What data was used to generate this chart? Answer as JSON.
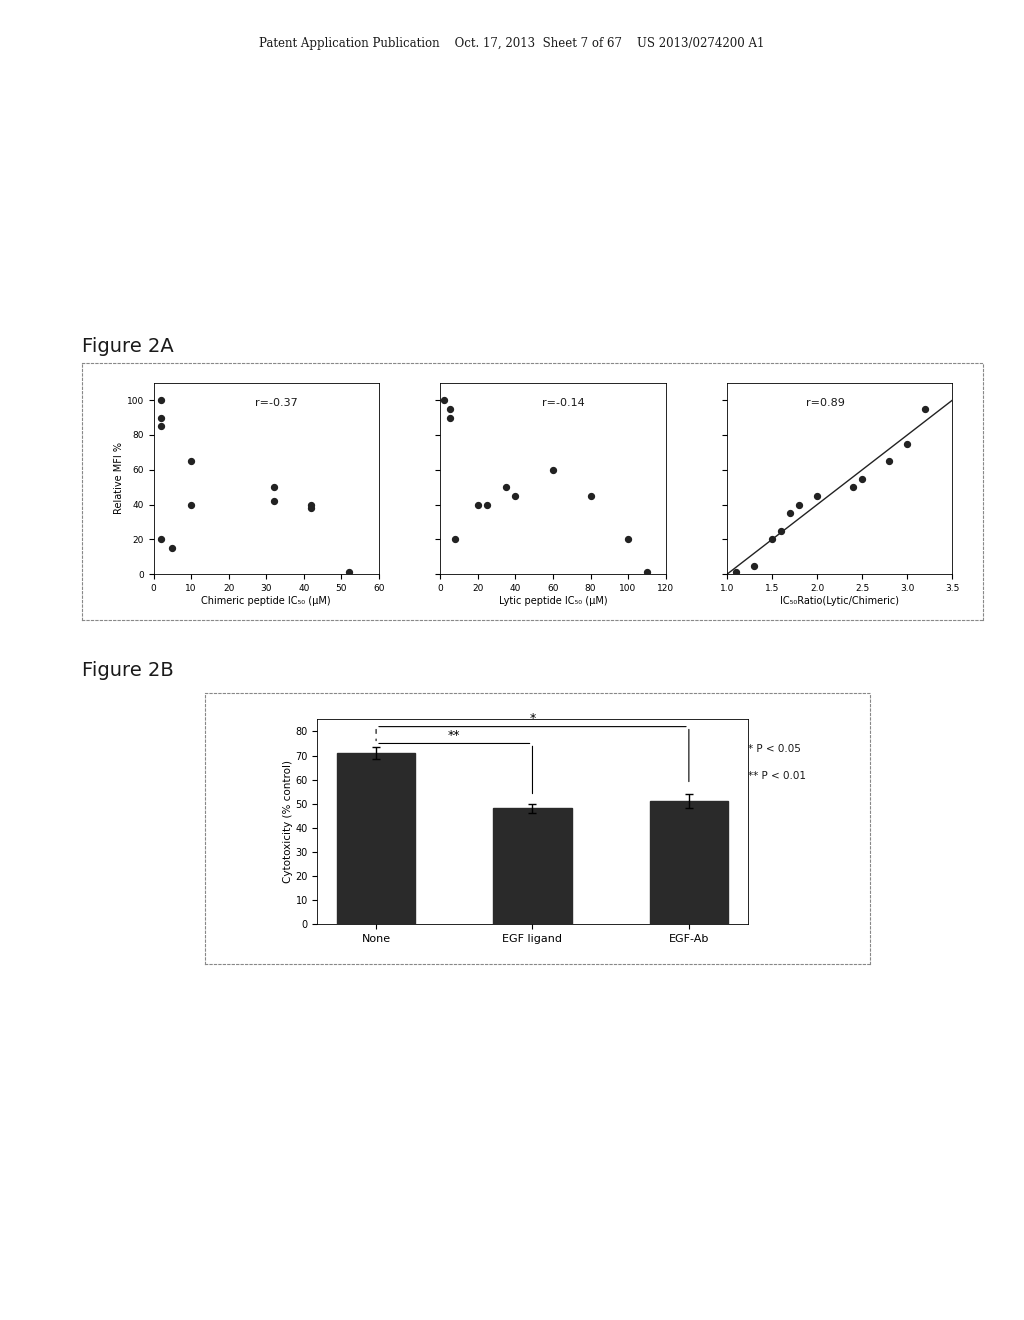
{
  "fig2a_title": "Figure 2A",
  "fig2b_title": "Figure 2B",
  "panel1": {
    "xlabel": "Chimeric peptide IC₅₀ (μM)",
    "r_text": "r=-0.37",
    "xticks": [
      0,
      10,
      20,
      30,
      40,
      50,
      60
    ],
    "yticks": [
      0,
      20,
      40,
      60,
      80,
      100
    ],
    "xlim": [
      0,
      60
    ],
    "ylim": [
      0,
      110
    ],
    "scatter_x": [
      2,
      2,
      2,
      2,
      5,
      10,
      10,
      32,
      32,
      42,
      42,
      52
    ],
    "scatter_y": [
      100,
      90,
      85,
      20,
      15,
      65,
      40,
      50,
      42,
      40,
      38,
      1
    ]
  },
  "panel2": {
    "xlabel": "Lytic peptide IC₅₀ (μM)",
    "r_text": "r=-0.14",
    "xticks": [
      0,
      20,
      40,
      60,
      80,
      100,
      120
    ],
    "yticks": [
      0,
      20,
      40,
      60,
      80,
      100
    ],
    "xlim": [
      0,
      120
    ],
    "ylim": [
      0,
      110
    ],
    "scatter_x": [
      2,
      5,
      5,
      8,
      20,
      25,
      35,
      40,
      60,
      80,
      100,
      110
    ],
    "scatter_y": [
      100,
      95,
      90,
      20,
      40,
      40,
      50,
      45,
      60,
      45,
      20,
      1
    ]
  },
  "panel3": {
    "xlabel": "IC₅₀Ratio(Lytic/Chimeric)",
    "r_text": "r=0.89",
    "xticks": [
      1.0,
      1.5,
      2.0,
      2.5,
      3.0,
      3.5
    ],
    "yticks": [
      0,
      20,
      40,
      60,
      80,
      100
    ],
    "xlim": [
      1.0,
      3.5
    ],
    "ylim": [
      0,
      110
    ],
    "scatter_x": [
      1.1,
      1.3,
      1.5,
      1.6,
      1.7,
      1.8,
      2.0,
      2.4,
      2.5,
      2.8,
      3.0,
      3.2
    ],
    "scatter_y": [
      1,
      5,
      20,
      25,
      35,
      40,
      45,
      50,
      55,
      65,
      75,
      95
    ],
    "trendline_x": [
      1.0,
      3.5
    ],
    "trendline_y": [
      0,
      100
    ]
  },
  "panel2a_ylabel": "Relative MFI %",
  "fig2b": {
    "categories": [
      "None",
      "EGF ligand",
      "EGF-Ab"
    ],
    "values": [
      71,
      48,
      51
    ],
    "errors": [
      2.5,
      2.0,
      3.0
    ],
    "bar_color": "#2a2a2a",
    "ylabel": "Cytotoxicity (% control)",
    "yticks": [
      0,
      10,
      20,
      30,
      40,
      50,
      60,
      70,
      80
    ],
    "ylim": [
      0,
      85
    ],
    "sig1_text": "*",
    "sig2_text": "**",
    "legend_text1": "* P < 0.05",
    "legend_text2": "** P < 0.01"
  },
  "header_text": "Patent Application Publication    Oct. 17, 2013  Sheet 7 of 67    US 2013/0274200 A1",
  "bg_color": "#ffffff",
  "text_color": "#1a1a1a",
  "dot_color": "#222222",
  "border_color": "#888888"
}
